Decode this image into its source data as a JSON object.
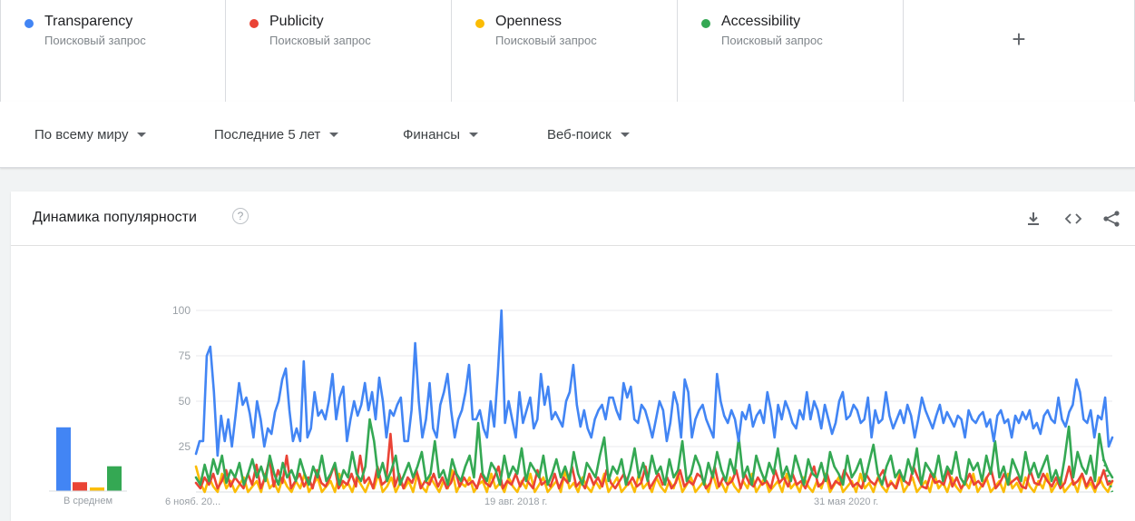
{
  "terms": [
    {
      "name": "Transparency",
      "sub": "Поисковый запрос",
      "color": "#4285f4"
    },
    {
      "name": "Publicity",
      "sub": "Поисковый запрос",
      "color": "#ea4335"
    },
    {
      "name": "Openness",
      "sub": "Поисковый запрос",
      "color": "#fbbc04"
    },
    {
      "name": "Accessibility",
      "sub": "Поисковый запрос",
      "color": "#34a853"
    }
  ],
  "add_term_label": "+",
  "filters": {
    "region": "По всему миру",
    "period": "Последние 5 лет",
    "category": "Финансы",
    "search_type": "Веб-поиск"
  },
  "card": {
    "title": "Динамика популярности",
    "help_symbol": "?",
    "icons": [
      "download-icon",
      "embed-icon",
      "share-icon"
    ]
  },
  "chart_data": {
    "type": "line",
    "ylim": [
      0,
      100
    ],
    "yticks": [
      "100",
      "75",
      "50",
      "25"
    ],
    "xticks": [
      "6 нояб. 20...",
      "19 авг. 2018 г.",
      "31 мая 2020 г."
    ],
    "average_label": "В среднем",
    "averages": [
      36,
      5,
      2,
      14
    ],
    "series": [
      {
        "name": "Transparency",
        "color": "#4285f4",
        "values": [
          21,
          28,
          28,
          75,
          80,
          55,
          20,
          42,
          28,
          40,
          25,
          42,
          60,
          48,
          52,
          43,
          30,
          50,
          40,
          25,
          35,
          32,
          44,
          50,
          62,
          68,
          45,
          28,
          35,
          28,
          72,
          30,
          35,
          55,
          42,
          45,
          40,
          50,
          65,
          40,
          52,
          58,
          28,
          40,
          50,
          42,
          48,
          60,
          45,
          55,
          40,
          63,
          50,
          30,
          45,
          42,
          48,
          52,
          28,
          28,
          45,
          82,
          50,
          30,
          40,
          60,
          35,
          30,
          48,
          55,
          65,
          45,
          30,
          40,
          45,
          55,
          70,
          40,
          40,
          45,
          35,
          30,
          50,
          36,
          65,
          100,
          38,
          50,
          40,
          30,
          55,
          38,
          45,
          52,
          35,
          40,
          65,
          48,
          58,
          40,
          44,
          40,
          36,
          50,
          55,
          70,
          48,
          36,
          45,
          35,
          30,
          40,
          45,
          48,
          40,
          52,
          52,
          45,
          40,
          60,
          52,
          58,
          40,
          38,
          48,
          45,
          38,
          30,
          40,
          50,
          45,
          28,
          38,
          55,
          48,
          30,
          62,
          55,
          30,
          40,
          45,
          48,
          40,
          35,
          30,
          65,
          50,
          42,
          38,
          45,
          40,
          28,
          44,
          40,
          48,
          36,
          42,
          45,
          38,
          55,
          45,
          30,
          48,
          40,
          50,
          45,
          38,
          35,
          45,
          40,
          55,
          40,
          50,
          45,
          35,
          48,
          40,
          32,
          38,
          50,
          55,
          40,
          42,
          48,
          45,
          38,
          40,
          52,
          30,
          45,
          38,
          40,
          55,
          42,
          35,
          40,
          45,
          38,
          48,
          42,
          30,
          40,
          52,
          45,
          40,
          35,
          42,
          48,
          38,
          44,
          40,
          36,
          42,
          40,
          30,
          45,
          40,
          38,
          42,
          44,
          36,
          40,
          28,
          42,
          45,
          38,
          40,
          30,
          42,
          38,
          44,
          40,
          45,
          35,
          38,
          32,
          42,
          45,
          40,
          38,
          52,
          40,
          36,
          44,
          48,
          62,
          55,
          40,
          38,
          45,
          30,
          42,
          40,
          52,
          25,
          30
        ],
        "smooth": true
      },
      {
        "name": "Publicity",
        "color": "#ea4335",
        "values": [
          5,
          2,
          8,
          4,
          10,
          2,
          6,
          12,
          3,
          8,
          5,
          2,
          10,
          4,
          15,
          2,
          8,
          18,
          3,
          12,
          5,
          20,
          2,
          6,
          10,
          3,
          8,
          2,
          12,
          5,
          3,
          8,
          15,
          2,
          6,
          4,
          10,
          3,
          20,
          5,
          8,
          2,
          14,
          4,
          6,
          32,
          3,
          10,
          2,
          8,
          5,
          12,
          2,
          6,
          4,
          10,
          3,
          8,
          2,
          5,
          12,
          3,
          8,
          4,
          6,
          2,
          10,
          5,
          3,
          8,
          14,
          2,
          6,
          4,
          10,
          3,
          8,
          5,
          2,
          12,
          4,
          6,
          3,
          10,
          2,
          8,
          5,
          14,
          3,
          6,
          2,
          10,
          4,
          8,
          3,
          12,
          5,
          2,
          6,
          10,
          4,
          8,
          3,
          5,
          14,
          2,
          6,
          10,
          4,
          8,
          2,
          5,
          12,
          3,
          6,
          4,
          10,
          8,
          2,
          5,
          14,
          3,
          8,
          4,
          6,
          12,
          2,
          10,
          5,
          3,
          8,
          4,
          6,
          2,
          12,
          5,
          8,
          3,
          10,
          4,
          6,
          2,
          8,
          14,
          3,
          5,
          10,
          2,
          6,
          4,
          12,
          8,
          3,
          5,
          2,
          10,
          6,
          4,
          8,
          12,
          3,
          5,
          2,
          10,
          6,
          4,
          14,
          8,
          3,
          2,
          10,
          5,
          6,
          4,
          12,
          3,
          8,
          2,
          5,
          10,
          4,
          6,
          3,
          8,
          12,
          2,
          5,
          10,
          4,
          6,
          8,
          3,
          2,
          12,
          5,
          4,
          10,
          6,
          3,
          8,
          2,
          5,
          14,
          4,
          6,
          10,
          3,
          8,
          2,
          5,
          12,
          4,
          6
        ],
        "smooth": false
      },
      {
        "name": "Openness",
        "color": "#fbbc04",
        "values": [
          14,
          5,
          0,
          8,
          3,
          0,
          10,
          2,
          6,
          0,
          4,
          8,
          0,
          3,
          6,
          0,
          10,
          2,
          5,
          0,
          8,
          3,
          0,
          6,
          2,
          10,
          0,
          4,
          8,
          0,
          3,
          6,
          0,
          10,
          2,
          5,
          0,
          8,
          4,
          0,
          6,
          2,
          10,
          0,
          3,
          8,
          0,
          5,
          2,
          6,
          0,
          10,
          3,
          0,
          8,
          4,
          0,
          6,
          2,
          12,
          0,
          5,
          3,
          8,
          0,
          4,
          6,
          0,
          10,
          2,
          5,
          0,
          8,
          3,
          0,
          6,
          2,
          10,
          0,
          4,
          8,
          0,
          3,
          6,
          0,
          12,
          2,
          5,
          0,
          8,
          3,
          0,
          6,
          2,
          10,
          0,
          4,
          8,
          0,
          3,
          6,
          0,
          10,
          2,
          5,
          0,
          8,
          3,
          0,
          6,
          2,
          10,
          0,
          4,
          8,
          0,
          3,
          6,
          0,
          10,
          2,
          5,
          0,
          8,
          3,
          0,
          6,
          2,
          10,
          0,
          4,
          8,
          0,
          3,
          6,
          0,
          10,
          2,
          5,
          0,
          8,
          3,
          0,
          6,
          2,
          10,
          0,
          4,
          8,
          0,
          3,
          6,
          0,
          10,
          2,
          5,
          0,
          8,
          3,
          0,
          6,
          2,
          10,
          0,
          4,
          8,
          0,
          3,
          6,
          0,
          10,
          2,
          5,
          0,
          8,
          3,
          0,
          6,
          2,
          10,
          0,
          4,
          8,
          0,
          3,
          6,
          0,
          10,
          2,
          5,
          0,
          8,
          3,
          0,
          6,
          2,
          10,
          0,
          4,
          8,
          0,
          3,
          6,
          0,
          10,
          2,
          5,
          0,
          8,
          3,
          0,
          6
        ],
        "smooth": false
      },
      {
        "name": "Accessibility",
        "color": "#34a853",
        "values": [
          8,
          4,
          15,
          6,
          18,
          10,
          20,
          5,
          12,
          8,
          16,
          4,
          10,
          18,
          8,
          14,
          6,
          20,
          10,
          4,
          16,
          8,
          12,
          6,
          18,
          10,
          4,
          14,
          8,
          20,
          6,
          10,
          16,
          4,
          12,
          8,
          22,
          10,
          6,
          14,
          40,
          28,
          8,
          16,
          6,
          12,
          20,
          4,
          10,
          16,
          8,
          14,
          22,
          6,
          10,
          28,
          8,
          12,
          4,
          18,
          10,
          6,
          14,
          20,
          8,
          38,
          10,
          6,
          16,
          12,
          4,
          20,
          8,
          14,
          10,
          24,
          6,
          16,
          12,
          8,
          20,
          4,
          10,
          18,
          8,
          14,
          6,
          22,
          10,
          4,
          16,
          12,
          8,
          20,
          30,
          6,
          14,
          10,
          18,
          4,
          12,
          24,
          8,
          16,
          6,
          20,
          10,
          14,
          4,
          18,
          8,
          12,
          28,
          6,
          10,
          20,
          14,
          4,
          16,
          8,
          22,
          12,
          6,
          18,
          10,
          30,
          8,
          14,
          4,
          20,
          12,
          6,
          16,
          10,
          24,
          8,
          14,
          6,
          20,
          12,
          4,
          18,
          10,
          8,
          16,
          6,
          22,
          14,
          10,
          4,
          20,
          8,
          12,
          18,
          6,
          16,
          26,
          10,
          4,
          14,
          20,
          8,
          12,
          6,
          18,
          10,
          24,
          4,
          16,
          12,
          8,
          20,
          6,
          14,
          10,
          22,
          8,
          4,
          18,
          12,
          16,
          6,
          20,
          10,
          28,
          8,
          14,
          4,
          18,
          12,
          6,
          22,
          10,
          16,
          8,
          14,
          20,
          6,
          12,
          4,
          18,
          36,
          8,
          22,
          14,
          10,
          20,
          6,
          32,
          18,
          12,
          8
        ],
        "smooth": false
      }
    ]
  }
}
